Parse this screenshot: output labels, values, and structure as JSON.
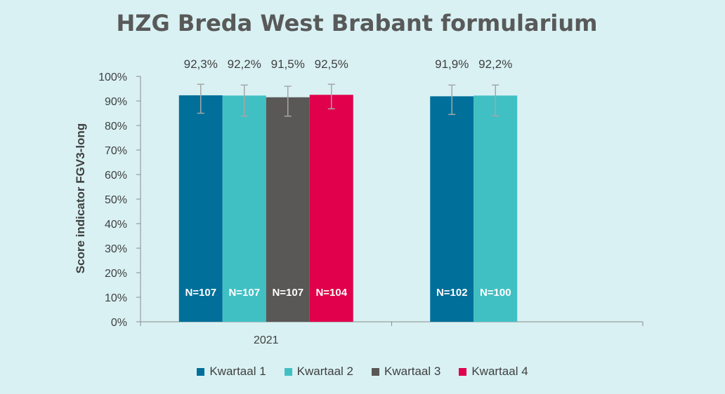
{
  "chart_data": {
    "type": "bar",
    "title": "HZG Breda West Brabant formularium",
    "xlabel": "",
    "ylabel": "Score indicator FGV3-long",
    "ylim": [
      0,
      100
    ],
    "yticks": [
      "0%",
      "10%",
      "20%",
      "30%",
      "40%",
      "50%",
      "60%",
      "70%",
      "80%",
      "90%",
      "100%"
    ],
    "categories": [
      "2021",
      ""
    ],
    "legend_position": "bottom",
    "grid": false,
    "series": [
      {
        "name": "Kwartaal 1",
        "color": "#006f9a",
        "values": [
          92.3,
          91.9
        ],
        "value_labels": [
          "92,3%",
          "91,9%"
        ],
        "n_labels": [
          "N=107",
          "N=102"
        ],
        "error_low": [
          85,
          84.5
        ],
        "error_high": [
          96.8,
          96.5
        ]
      },
      {
        "name": "Kwartaal 2",
        "color": "#41c0c4",
        "values": [
          92.2,
          92.2
        ],
        "value_labels": [
          "92,2%",
          "92,2%"
        ],
        "n_labels": [
          "N=107",
          "N=100"
        ],
        "error_low": [
          83.8,
          84
        ],
        "error_high": [
          96.5,
          96.5
        ]
      },
      {
        "name": "Kwartaal 3",
        "color": "#5a5856",
        "values": [
          91.5,
          null
        ],
        "value_labels": [
          "91,5%",
          null
        ],
        "n_labels": [
          "N=107",
          null
        ],
        "error_low": [
          83.8,
          null
        ],
        "error_high": [
          96,
          null
        ]
      },
      {
        "name": "Kwartaal 4",
        "color": "#e1004b",
        "values": [
          92.5,
          null
        ],
        "value_labels": [
          "92,5%",
          null
        ],
        "n_labels": [
          "N=104",
          null
        ],
        "error_low": [
          86.8,
          null
        ],
        "error_high": [
          96.8,
          null
        ]
      }
    ]
  }
}
